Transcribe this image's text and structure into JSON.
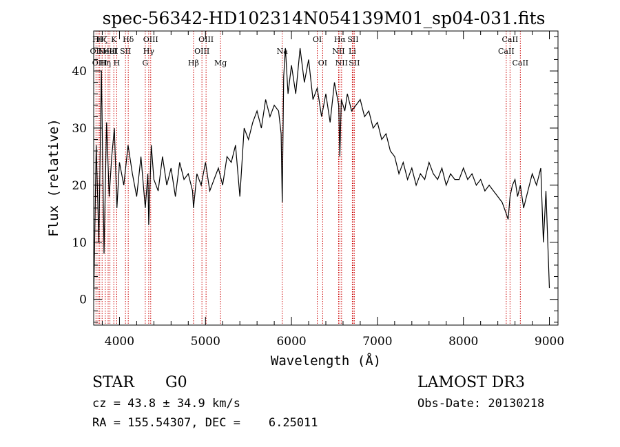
{
  "chart_data": {
    "type": "line",
    "title": "spec-56342-HD102314N054139M01_sp04-031.fits",
    "xlabel": "Wavelength (Å)",
    "ylabel": "Flux (relative)",
    "xlim": [
      3700,
      9100
    ],
    "ylim": [
      -4.5,
      47
    ],
    "x_ticks": [
      4000,
      5000,
      6000,
      7000,
      8000,
      9000
    ],
    "y_ticks": [
      0,
      10,
      20,
      30,
      40
    ],
    "grid": false,
    "line_color": "#000000",
    "marker_color": "#cc0000",
    "series": [
      {
        "x": [
          3700,
          3730,
          3760,
          3790,
          3820,
          3850,
          3880,
          3910,
          3940,
          3970,
          4000,
          4050,
          4100,
          4150,
          4200,
          4250,
          4300,
          4330,
          4340,
          4370,
          4400,
          4450,
          4500,
          4550,
          4600,
          4650,
          4700,
          4750,
          4800,
          4850,
          4861,
          4900,
          4950,
          5000,
          5050,
          5100,
          5150,
          5200,
          5250,
          5300,
          5350,
          5400,
          5450,
          5500,
          5550,
          5600,
          5650,
          5700,
          5750,
          5800,
          5850,
          5880,
          5893,
          5910,
          5930,
          5960,
          6000,
          6050,
          6100,
          6150,
          6200,
          6250,
          6300,
          6350,
          6400,
          6450,
          6500,
          6550,
          6563,
          6580,
          6620,
          6650,
          6700,
          6750,
          6800,
          6850,
          6900,
          6950,
          7000,
          7050,
          7100,
          7150,
          7200,
          7250,
          7300,
          7350,
          7400,
          7450,
          7500,
          7550,
          7600,
          7650,
          7700,
          7750,
          7800,
          7850,
          7900,
          7950,
          8000,
          8050,
          8100,
          8150,
          8200,
          8250,
          8300,
          8350,
          8400,
          8450,
          8498,
          8520,
          8542,
          8570,
          8600,
          8630,
          8662,
          8700,
          8750,
          8800,
          8850,
          8900,
          8930,
          8960,
          9000
        ],
        "y": [
          0,
          27,
          10,
          40,
          8,
          31,
          18,
          25,
          30,
          16,
          24,
          20,
          27,
          22,
          18,
          25,
          16,
          22,
          13,
          27,
          21,
          19,
          25,
          20,
          23,
          18,
          24,
          21,
          22,
          19,
          16,
          22,
          20,
          24,
          19,
          21,
          23,
          20,
          25,
          24,
          27,
          18,
          30,
          28,
          31,
          33,
          30,
          35,
          32,
          34,
          33,
          29,
          17,
          39,
          44,
          36,
          41,
          36,
          44,
          38,
          42,
          35,
          37,
          32,
          36,
          31,
          38,
          34,
          25,
          35,
          33,
          36,
          33,
          34,
          35,
          32,
          33,
          30,
          31,
          28,
          29,
          26,
          25,
          22,
          24,
          21,
          23,
          20,
          22,
          21,
          24,
          22,
          21,
          23,
          20,
          22,
          21,
          21,
          23,
          21,
          22,
          20,
          21,
          19,
          20,
          19,
          18,
          17,
          15,
          14,
          18,
          20,
          21,
          18,
          20,
          16,
          19,
          22,
          20,
          23,
          10,
          19,
          2
        ]
      }
    ],
    "lines": [
      {
        "x": 3727,
        "labels": [
          "OII"
        ],
        "row": 1
      },
      {
        "x": 3750,
        "labels": [
          "Hθ"
        ],
        "row": 0
      },
      {
        "x": 3770,
        "labels": [
          "OIII"
        ],
        "row": 2
      },
      {
        "x": 3798,
        "labels": [
          "Hζ"
        ],
        "row": 0
      },
      {
        "x": 3835,
        "labels": [
          "Hη"
        ],
        "row": 2
      },
      {
        "x": 3868,
        "labels": [
          "NeIII"
        ],
        "row": 1
      },
      {
        "x": 3889,
        "labels": [
          "HeI"
        ],
        "row": 1
      },
      {
        "x": 3934,
        "labels": [
          "K"
        ],
        "row": 0
      },
      {
        "x": 3968,
        "labels": [
          "H"
        ],
        "row": 2
      },
      {
        "x": 4070,
        "labels": [
          "SII"
        ],
        "row": 1
      },
      {
        "x": 4102,
        "labels": [
          "Hδ"
        ],
        "row": 0
      },
      {
        "x": 4300,
        "labels": [
          "G"
        ],
        "row": 2
      },
      {
        "x": 4340,
        "labels": [
          "Hγ"
        ],
        "row": 1
      },
      {
        "x": 4363,
        "labels": [
          "OIII"
        ],
        "row": 0
      },
      {
        "x": 4861,
        "labels": [
          "Hβ"
        ],
        "row": 2
      },
      {
        "x": 4959,
        "labels": [
          "OIII"
        ],
        "row": 1
      },
      {
        "x": 5007,
        "labels": [
          "OIII"
        ],
        "row": 0
      },
      {
        "x": 5175,
        "labels": [
          "Mg"
        ],
        "row": 2
      },
      {
        "x": 5893,
        "labels": [
          "Na"
        ],
        "row": 1
      },
      {
        "x": 6300,
        "labels": [
          "OI"
        ],
        "row": 0
      },
      {
        "x": 6363,
        "labels": [
          "OI"
        ],
        "row": 2
      },
      {
        "x": 6548,
        "labels": [
          "NII"
        ],
        "row": 1
      },
      {
        "x": 6563,
        "labels": [
          "Hα"
        ],
        "row": 0
      },
      {
        "x": 6583,
        "labels": [
          "NII"
        ],
        "row": 2
      },
      {
        "x": 6708,
        "labels": [
          "Li"
        ],
        "row": 1
      },
      {
        "x": 6716,
        "labels": [
          "SII"
        ],
        "row": 0
      },
      {
        "x": 6731,
        "labels": [
          "SII"
        ],
        "row": 2
      },
      {
        "x": 8498,
        "labels": [
          "CaII"
        ],
        "row": 1
      },
      {
        "x": 8542,
        "labels": [
          "CaII"
        ],
        "row": 0
      },
      {
        "x": 8662,
        "labels": [
          "CaII"
        ],
        "row": 2
      }
    ]
  },
  "info": {
    "object_class": "STAR",
    "subclass": "G0",
    "survey": "LAMOST DR3",
    "redshift": "cz = 43.8 ± 34.9 km/s",
    "obs_date": "Obs-Date: 20130218",
    "coords": "RA = 155.54307, DEC =    6.25011"
  }
}
